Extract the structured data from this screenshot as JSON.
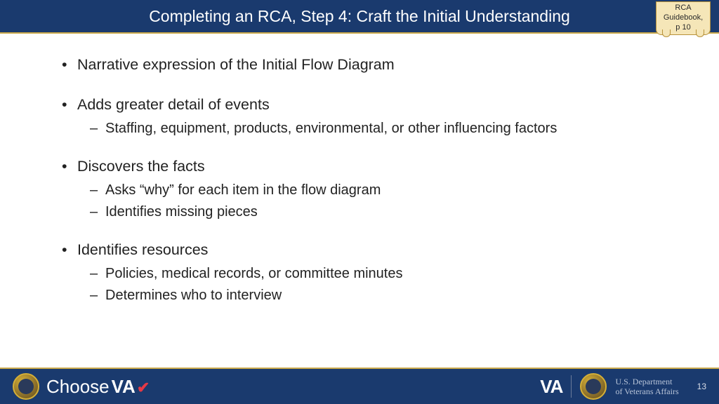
{
  "header": {
    "title": "Completing an RCA, Step 4: Craft the Initial Understanding",
    "title_color": "#ffffff",
    "bg_color": "#1a3a6e",
    "accent_color": "#c9a84a"
  },
  "sticky": {
    "line1": "RCA",
    "line2": "Guidebook,",
    "line3": "p 10",
    "bg_color": "#f5e6b8",
    "border_color": "#b8923a"
  },
  "content": {
    "text_color": "#222222",
    "main_fontsize": 21.5,
    "sub_fontsize": 20,
    "groups": [
      {
        "main": "Narrative expression of the Initial Flow Diagram",
        "subs": []
      },
      {
        "main": "Adds greater detail of events",
        "subs": [
          "Staffing, equipment, products, environmental, or other influencing factors"
        ]
      },
      {
        "main": "Discovers the facts",
        "subs": [
          "Asks “why” for each item in the flow diagram",
          "Identifies missing pieces"
        ]
      },
      {
        "main": "Identifies resources",
        "subs": [
          "Policies, medical records, or committee minutes",
          "Determines who to interview"
        ]
      }
    ]
  },
  "footer": {
    "bg_color": "#1a3a6e",
    "choose_text": "Choose",
    "va_text": "VA",
    "va_big": "VA",
    "dept_line1": "U.S. Department",
    "dept_line2": "of Veterans Affairs",
    "page_number": "13"
  }
}
